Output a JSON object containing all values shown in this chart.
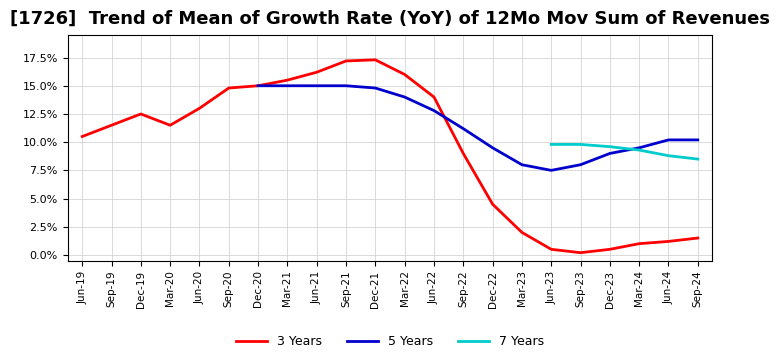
{
  "title": "[1726]  Trend of Mean of Growth Rate (YoY) of 12Mo Mov Sum of Revenues",
  "title_fontsize": 13,
  "ylim": [
    -0.005,
    0.195
  ],
  "yticks": [
    0.0,
    0.025,
    0.05,
    0.075,
    0.1,
    0.125,
    0.15,
    0.175
  ],
  "ytick_labels": [
    "0.0%",
    "2.5%",
    "5.0%",
    "7.5%",
    "10.0%",
    "12.5%",
    "15.0%",
    "17.5%"
  ],
  "x_labels": [
    "Jun-19",
    "Sep-19",
    "Dec-19",
    "Mar-20",
    "Jun-20",
    "Sep-20",
    "Dec-20",
    "Mar-21",
    "Jun-21",
    "Sep-21",
    "Dec-21",
    "Mar-22",
    "Jun-22",
    "Sep-22",
    "Dec-22",
    "Mar-23",
    "Jun-23",
    "Sep-23",
    "Dec-23",
    "Mar-24",
    "Jun-24",
    "Sep-24"
  ],
  "series": {
    "3 Years": {
      "color": "#ff0000",
      "values": [
        0.105,
        0.115,
        0.125,
        0.115,
        0.13,
        0.148,
        0.15,
        0.155,
        0.162,
        0.172,
        0.173,
        0.16,
        0.14,
        0.09,
        0.045,
        0.02,
        0.005,
        0.002,
        0.005,
        0.01,
        0.012,
        0.015
      ]
    },
    "5 Years": {
      "color": "#0000cc",
      "values": [
        null,
        null,
        null,
        null,
        null,
        null,
        0.15,
        0.15,
        0.15,
        0.15,
        0.148,
        0.14,
        0.128,
        0.112,
        0.095,
        0.08,
        0.075,
        0.08,
        0.09,
        0.095,
        0.102,
        0.102
      ]
    },
    "7 Years": {
      "color": "#00cccc",
      "values": [
        null,
        null,
        null,
        null,
        null,
        null,
        null,
        null,
        null,
        null,
        null,
        null,
        null,
        null,
        null,
        null,
        0.098,
        0.098,
        0.096,
        0.093,
        0.088,
        0.085
      ]
    },
    "10 Years": {
      "color": "#006600",
      "values": [
        null,
        null,
        null,
        null,
        null,
        null,
        null,
        null,
        null,
        null,
        null,
        null,
        null,
        null,
        null,
        null,
        null,
        null,
        null,
        null,
        null,
        null
      ]
    }
  },
  "background_color": "#ffffff",
  "grid_color": "#cccccc",
  "legend_loc": "lower center",
  "legend_ncol": 4
}
